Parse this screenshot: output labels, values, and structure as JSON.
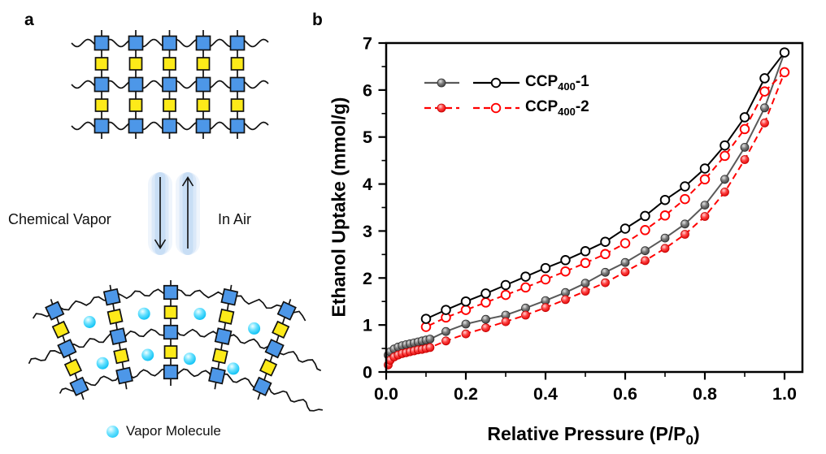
{
  "figure": {
    "background": "#ffffff"
  },
  "panel_a": {
    "label": "a",
    "arrow_left_label": "Chemical Vapor",
    "arrow_right_label": "In Air",
    "vapor_legend_label": "Vapor Molecule",
    "colors": {
      "monomer_blue": "#4d97e8",
      "linker_yellow": "#fdea19",
      "molecule_cyan": "#00bdf2",
      "arrow_glow": "#b5d3f2",
      "line_black": "#111111"
    }
  },
  "panel_b": {
    "label": "b"
  },
  "chart_data": {
    "type": "line",
    "title": "",
    "xlabel": "Relative Pressure (P/P₀)",
    "xlabel_parts": {
      "pre": "Relative Pressure (P/P",
      "sub": "0",
      "post": ")"
    },
    "ylabel": "Ethanol Uptake (mmol/g)",
    "xlim": [
      0,
      1.045
    ],
    "ylim": [
      0,
      7
    ],
    "x_ticks": [
      0.0,
      0.2,
      0.4,
      0.6,
      0.8,
      1.0
    ],
    "x_tick_labels": [
      "0.0",
      "0.2",
      "0.4",
      "0.6",
      "0.8",
      "1.0"
    ],
    "x_minor_ticks": [
      0.1,
      0.3,
      0.5,
      0.7,
      0.9
    ],
    "y_ticks": [
      0,
      1,
      2,
      3,
      4,
      5,
      6,
      7
    ],
    "y_tick_labels": [
      "0",
      "1",
      "2",
      "3",
      "4",
      "5",
      "6",
      "7"
    ],
    "y_minor_ticks": [
      0.5,
      1.5,
      2.5,
      3.5,
      4.5,
      5.5,
      6.5
    ],
    "grid": false,
    "legend_position": "upper left inside",
    "legend": [
      {
        "label": "CCP₄₀₀-1",
        "pre": "CCP",
        "sub": "400",
        "post": "-1",
        "line_color": "#000000",
        "adsorption_color": "#595959",
        "dashed": false
      },
      {
        "label": "CCP₄₀₀-2",
        "pre": "CCP",
        "sub": "400",
        "post": "-2",
        "line_color": "#ff0000",
        "adsorption_color": "#ff0000",
        "dashed": true
      }
    ],
    "series": [
      {
        "id": "ccp400-1-adsorption",
        "name": "CCP₄₀₀-1 adsorption",
        "sample": "CCP₄₀₀-1",
        "branch": "adsorption",
        "color": "#595959",
        "marker": "filled-sphere",
        "marker_gradient": "gray",
        "line_style": "solid",
        "x": [
          0.005,
          0.01,
          0.02,
          0.03,
          0.04,
          0.05,
          0.06,
          0.07,
          0.08,
          0.09,
          0.1,
          0.11,
          0.15,
          0.2,
          0.25,
          0.3,
          0.35,
          0.4,
          0.45,
          0.5,
          0.55,
          0.6,
          0.65,
          0.7,
          0.75,
          0.8,
          0.85,
          0.9,
          0.95,
          1.0
        ],
        "y": [
          0.36,
          0.43,
          0.49,
          0.53,
          0.56,
          0.58,
          0.6,
          0.62,
          0.64,
          0.66,
          0.68,
          0.7,
          0.86,
          1.02,
          1.12,
          1.21,
          1.36,
          1.52,
          1.69,
          1.89,
          2.12,
          2.33,
          2.58,
          2.85,
          3.15,
          3.55,
          4.1,
          4.78,
          5.62,
          6.8
        ]
      },
      {
        "id": "ccp400-2-adsorption",
        "name": "CCP₄₀₀-2 adsorption",
        "sample": "CCP₄₀₀-2",
        "branch": "adsorption",
        "color": "#ff0000",
        "marker": "filled-sphere",
        "marker_gradient": "red",
        "line_style": "dashed",
        "x": [
          0.005,
          0.01,
          0.02,
          0.03,
          0.04,
          0.05,
          0.06,
          0.07,
          0.08,
          0.09,
          0.1,
          0.11,
          0.15,
          0.2,
          0.25,
          0.3,
          0.35,
          0.4,
          0.45,
          0.5,
          0.55,
          0.6,
          0.65,
          0.7,
          0.75,
          0.8,
          0.85,
          0.9,
          0.95,
          1.0
        ],
        "y": [
          0.15,
          0.25,
          0.32,
          0.36,
          0.39,
          0.41,
          0.43,
          0.45,
          0.47,
          0.48,
          0.5,
          0.52,
          0.66,
          0.81,
          0.94,
          1.07,
          1.21,
          1.37,
          1.54,
          1.72,
          1.9,
          2.13,
          2.37,
          2.63,
          2.93,
          3.31,
          3.83,
          4.52,
          5.3,
          6.38
        ]
      },
      {
        "id": "ccp400-2-desorption",
        "name": "CCP₄₀₀-2 desorption",
        "sample": "CCP₄₀₀-2",
        "branch": "desorption",
        "color": "#ff0000",
        "marker": "open",
        "marker_gradient": "",
        "line_style": "dashed",
        "x": [
          1.0,
          0.95,
          0.9,
          0.85,
          0.8,
          0.75,
          0.7,
          0.65,
          0.6,
          0.55,
          0.5,
          0.45,
          0.4,
          0.35,
          0.3,
          0.25,
          0.2,
          0.15,
          0.1
        ],
        "y": [
          6.38,
          5.97,
          5.17,
          4.6,
          4.1,
          3.68,
          3.33,
          3.02,
          2.74,
          2.51,
          2.32,
          2.14,
          1.97,
          1.8,
          1.64,
          1.48,
          1.32,
          1.16,
          0.96
        ]
      },
      {
        "id": "ccp400-1-desorption",
        "name": "CCP₄₀₀-1 desorption",
        "sample": "CCP₄₀₀-1",
        "branch": "desorption",
        "color": "#000000",
        "marker": "open",
        "marker_gradient": "",
        "line_style": "solid",
        "x": [
          1.0,
          0.95,
          0.9,
          0.85,
          0.8,
          0.75,
          0.7,
          0.65,
          0.6,
          0.55,
          0.5,
          0.45,
          0.4,
          0.35,
          0.3,
          0.25,
          0.2,
          0.15,
          0.1
        ],
        "y": [
          6.8,
          6.25,
          5.42,
          4.82,
          4.33,
          3.95,
          3.66,
          3.32,
          3.05,
          2.77,
          2.57,
          2.38,
          2.21,
          2.03,
          1.85,
          1.67,
          1.5,
          1.32,
          1.13
        ]
      }
    ]
  }
}
